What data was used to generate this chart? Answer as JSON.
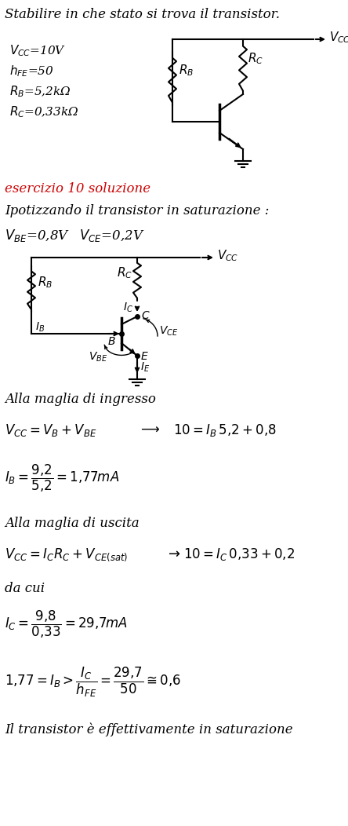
{
  "title_text": "Stabilire in che stato si trova il transistor.",
  "params": [
    "$V_{CC}$=10V",
    "$h_{FE}$=50",
    "$R_B$=5,2kΩ",
    "$R_C$=0,33kΩ"
  ],
  "solution_label": "esercizio 10 soluzione",
  "hyp_text": "Ipotizzando il transistor in saturazione :",
  "vbe_vce": "$V_{BE}$=0,8V   $V_{CE}$=0,2V",
  "ingresso_label": "Alla maglia di ingresso",
  "uscita_label": "Alla maglia di uscita",
  "dacui_label": "da cui",
  "conclusion": "Il transistor è effettivamente in saturazione",
  "red_color": "#cc0000",
  "fig_w": 4.44,
  "fig_h": 10.52,
  "dpi": 100
}
